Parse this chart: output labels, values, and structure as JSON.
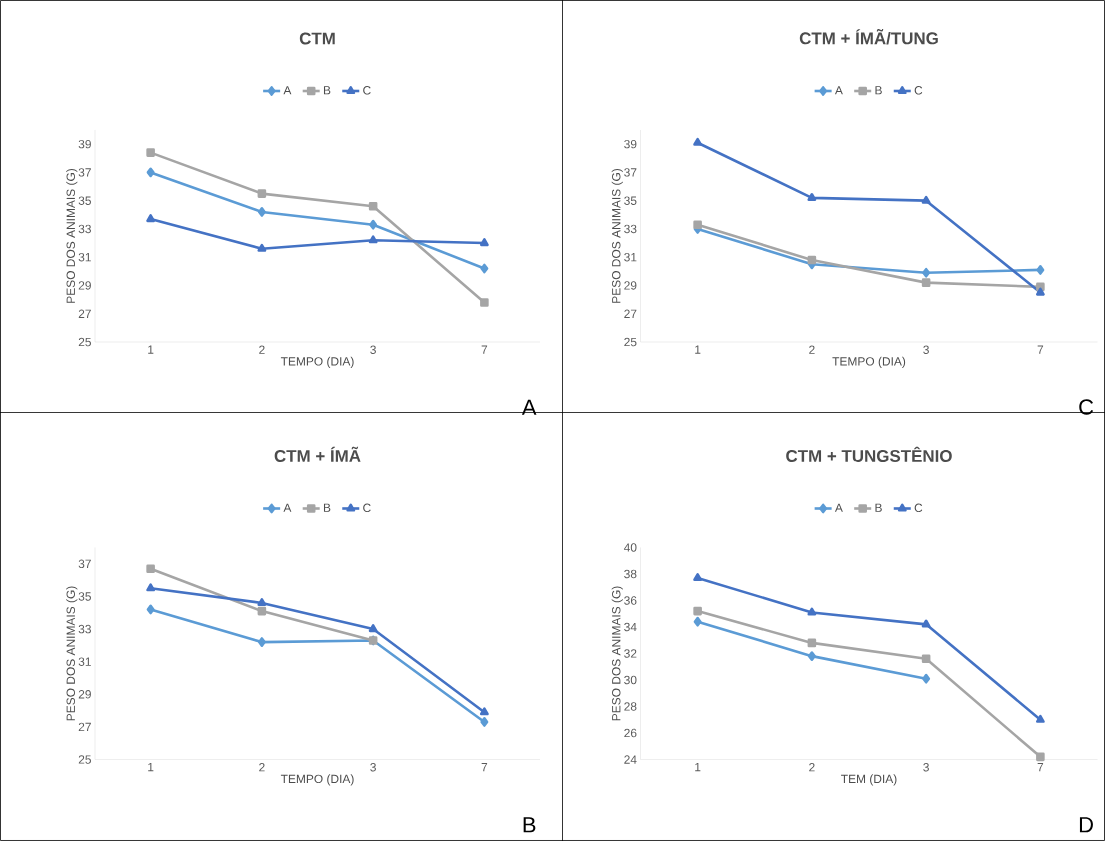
{
  "chart_data": [
    {
      "type": "line",
      "title": "CTM",
      "xlabel": "TEMPO (DIA)",
      "ylabel": "PESO DOS ANIMAIS (G)",
      "categories": [
        "1",
        "2",
        "3",
        "7"
      ],
      "ylim": [
        25,
        40
      ],
      "yticks": [
        25,
        27,
        29,
        31,
        33,
        35,
        37,
        39
      ],
      "legend": "top",
      "grid": false,
      "annotations": [
        "A"
      ],
      "series": [
        {
          "name": "A",
          "color": "#5b9bd5",
          "marker": "diamond",
          "values": [
            37.0,
            34.2,
            33.3,
            30.2
          ]
        },
        {
          "name": "B",
          "color": "#a5a5a5",
          "marker": "square",
          "values": [
            38.4,
            35.5,
            34.6,
            27.8
          ]
        },
        {
          "name": "C",
          "color": "#4472c4",
          "marker": "triangle",
          "values": [
            33.7,
            31.6,
            32.2,
            32.0
          ]
        }
      ]
    },
    {
      "type": "line",
      "title": "CTM + ÍMÃ/TUNG",
      "xlabel": "TEMPO (DIA)",
      "ylabel": "PESO DOS ANIMAIS (G)",
      "categories": [
        "1",
        "2",
        "3",
        "7"
      ],
      "ylim": [
        25,
        40
      ],
      "yticks": [
        25,
        27,
        29,
        31,
        33,
        35,
        37,
        39
      ],
      "legend": "top",
      "grid": false,
      "annotations": [
        "C"
      ],
      "series": [
        {
          "name": "A",
          "color": "#5b9bd5",
          "marker": "diamond",
          "values": [
            33.0,
            30.5,
            29.9,
            30.1
          ]
        },
        {
          "name": "B",
          "color": "#a5a5a5",
          "marker": "square",
          "values": [
            33.3,
            30.8,
            29.2,
            28.9
          ]
        },
        {
          "name": "C",
          "color": "#4472c4",
          "marker": "triangle",
          "values": [
            39.1,
            35.2,
            35.0,
            28.5
          ]
        }
      ]
    },
    {
      "type": "line",
      "title": "CTM + ÍMÃ",
      "xlabel": "TEMPO (DIA)",
      "ylabel": "PESO DOS ANIMAIS (G)",
      "categories": [
        "1",
        "2",
        "3",
        "7"
      ],
      "ylim": [
        25,
        38
      ],
      "yticks": [
        25,
        27,
        29,
        31,
        33,
        35,
        37
      ],
      "legend": "top",
      "grid": false,
      "annotations": [
        "B"
      ],
      "series": [
        {
          "name": "A",
          "color": "#5b9bd5",
          "marker": "diamond",
          "values": [
            34.2,
            32.2,
            32.3,
            27.3
          ]
        },
        {
          "name": "B",
          "color": "#a5a5a5",
          "marker": "square",
          "values": [
            36.7,
            34.1,
            32.3,
            null
          ]
        },
        {
          "name": "C",
          "color": "#4472c4",
          "marker": "triangle",
          "values": [
            35.5,
            34.6,
            33.0,
            27.9
          ]
        }
      ]
    },
    {
      "type": "line",
      "title": "CTM + TUNGSTÊNIO",
      "xlabel": "TEM (DIA)",
      "ylabel": "PESO DOS ANIMAIS (G)",
      "categories": [
        "1",
        "2",
        "3",
        "7"
      ],
      "ylim": [
        24,
        40
      ],
      "yticks": [
        24,
        26,
        28,
        30,
        32,
        34,
        36,
        38,
        40
      ],
      "legend": "top",
      "grid": false,
      "annotations": [
        "D"
      ],
      "series": [
        {
          "name": "A",
          "color": "#5b9bd5",
          "marker": "diamond",
          "values": [
            34.4,
            31.8,
            30.1,
            null
          ]
        },
        {
          "name": "B",
          "color": "#a5a5a5",
          "marker": "square",
          "values": [
            35.2,
            32.8,
            31.6,
            24.2
          ]
        },
        {
          "name": "C",
          "color": "#4472c4",
          "marker": "triangle",
          "values": [
            37.7,
            35.1,
            34.2,
            27.0
          ]
        }
      ]
    }
  ]
}
